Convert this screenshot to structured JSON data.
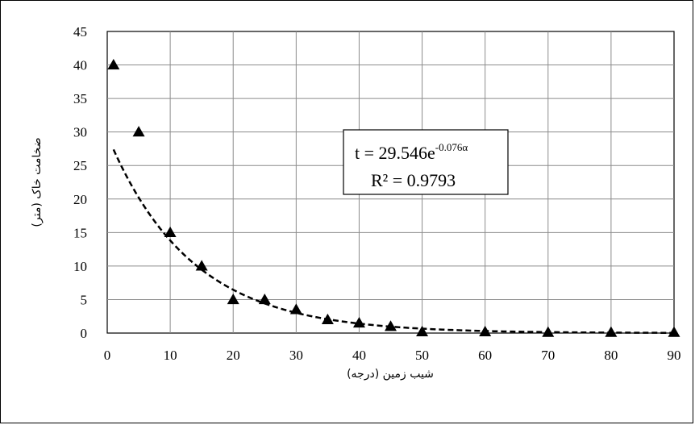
{
  "chart_data": {
    "type": "scatter",
    "title": "",
    "xlabel": "شیب زمین (درجه)",
    "ylabel": "ضخامت خاک (متر)",
    "xlim": [
      0,
      90
    ],
    "ylim": [
      0,
      45
    ],
    "x_ticks": [
      0,
      10,
      20,
      30,
      40,
      50,
      60,
      70,
      80,
      90
    ],
    "y_ticks": [
      0,
      5,
      10,
      15,
      20,
      25,
      30,
      35,
      40,
      45
    ],
    "grid": true,
    "legend": "none",
    "series": [
      {
        "marker": "triangle",
        "color": "#000000",
        "points": [
          {
            "x": 1,
            "y": 40
          },
          {
            "x": 5,
            "y": 30
          },
          {
            "x": 10,
            "y": 15
          },
          {
            "x": 15,
            "y": 10
          },
          {
            "x": 20,
            "y": 5
          },
          {
            "x": 25,
            "y": 5
          },
          {
            "x": 30,
            "y": 3.5
          },
          {
            "x": 35,
            "y": 2
          },
          {
            "x": 40,
            "y": 1.5
          },
          {
            "x": 45,
            "y": 1
          },
          {
            "x": 50,
            "y": 0.2
          },
          {
            "x": 60,
            "y": 0.2
          },
          {
            "x": 70,
            "y": 0.1
          },
          {
            "x": 80,
            "y": 0.1
          },
          {
            "x": 90,
            "y": 0.1
          }
        ]
      }
    ],
    "trendline": {
      "type": "exponential",
      "a": 29.546,
      "b": -0.076,
      "x_start": 1,
      "x_end": 90,
      "style": "dashed",
      "color": "#000000"
    },
    "annotation": {
      "equation_base": "t = 29.546e",
      "equation_exponent": "-0.076α",
      "r_squared": "R² = 0.9793"
    }
  }
}
